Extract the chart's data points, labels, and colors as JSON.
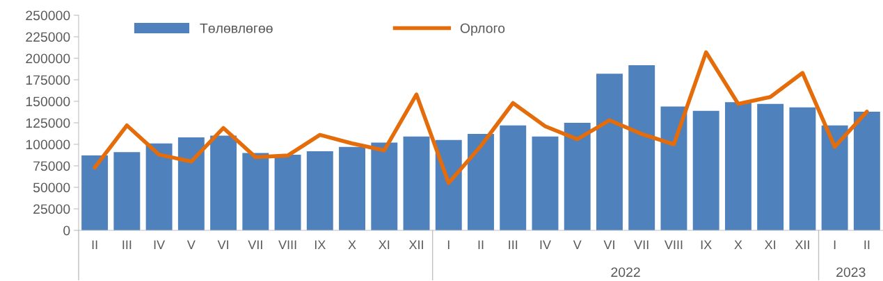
{
  "chart_data": {
    "type": "bar",
    "categories": [
      "II",
      "III",
      "IV",
      "V",
      "VI",
      "VII",
      "VIII",
      "IX",
      "X",
      "XI",
      "XII",
      "I",
      "II",
      "III",
      "IV",
      "V",
      "VI",
      "VII",
      "VIII",
      "IX",
      "X",
      "XI",
      "XII",
      "I",
      "II"
    ],
    "series": [
      {
        "name": "Төлөвлөгөө",
        "color": "#4f81bd",
        "values": [
          87000,
          91000,
          101000,
          108000,
          110000,
          90000,
          88000,
          92000,
          97000,
          102000,
          109000,
          105000,
          112000,
          122000,
          109000,
          125000,
          182000,
          192000,
          144000,
          139000,
          149000,
          147000,
          143000,
          122000,
          138000
        ]
      },
      {
        "name": "Орлого",
        "type": "line",
        "color": "#e46c0a",
        "values": [
          73000,
          122000,
          88000,
          80000,
          119000,
          85000,
          87000,
          111000,
          101000,
          93000,
          158000,
          55000,
          98000,
          148000,
          121000,
          106000,
          128000,
          112000,
          100000,
          207000,
          147000,
          155000,
          183000,
          97000,
          138000
        ]
      }
    ],
    "ylim": [
      0,
      250000
    ],
    "yticks": [
      0,
      25000,
      50000,
      75000,
      100000,
      125000,
      150000,
      175000,
      200000,
      225000,
      250000
    ],
    "annotations": [
      "2022",
      "2023"
    ],
    "legend": "top",
    "grid": false
  }
}
